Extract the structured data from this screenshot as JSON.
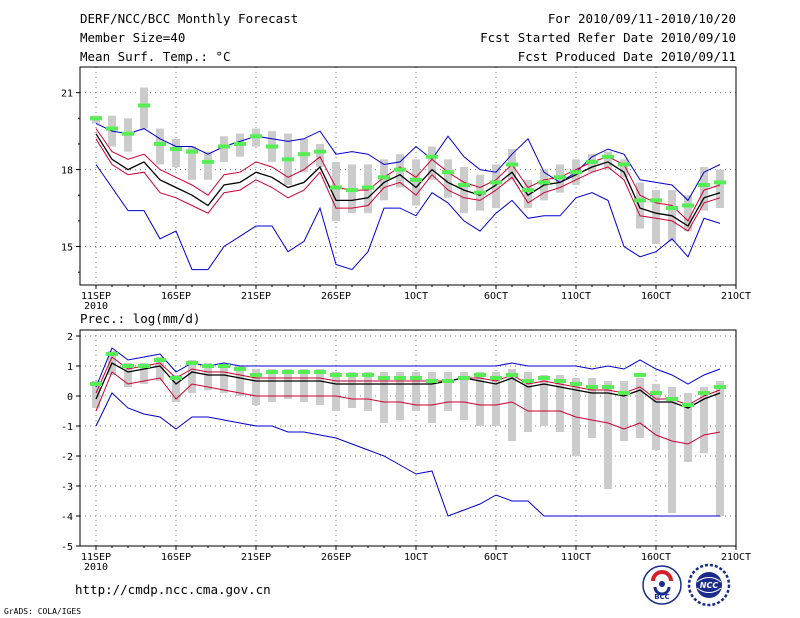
{
  "header": {
    "title": "DERF/NCC/BCC Monthly Forecast",
    "member_size": "Member Size=40",
    "variable": "Mean Surf. Temp.: °C",
    "period": "For 2010/09/11-2010/10/20",
    "started": "Fcst Started Refer Date 2010/09/10",
    "produced": "Fcst Produced Date 2010/09/11"
  },
  "footer": {
    "url": "http://cmdp.ncc.cma.gov.cn",
    "credit": "GrADS: COLA/IGES",
    "logo1_text": "BCC",
    "logo2_text": "NCC"
  },
  "colors": {
    "max": "#0000cc",
    "upper": "#cc0033",
    "mean": "#000000",
    "observed": "#55ee55",
    "spread": "#cccccc",
    "grid": "#777777"
  },
  "chart_data": [
    {
      "type": "line",
      "title": "Mean Surf. Temp.: °C",
      "x": [
        "11SEP",
        "12SEP",
        "13SEP",
        "14SEP",
        "15SEP",
        "16SEP",
        "17SEP",
        "18SEP",
        "19SEP",
        "20SEP",
        "21SEP",
        "22SEP",
        "23SEP",
        "24SEP",
        "25SEP",
        "26SEP",
        "27SEP",
        "28SEP",
        "29SEP",
        "30SEP",
        "1OCT",
        "2OCT",
        "3OCT",
        "4OCT",
        "5OCT",
        "6OCT",
        "7OCT",
        "8OCT",
        "9OCT",
        "10OCT",
        "11OCT",
        "12OCT",
        "13OCT",
        "14OCT",
        "15OCT",
        "16OCT",
        "17OCT",
        "18OCT",
        "19OCT",
        "20OCT"
      ],
      "tick_labels": [
        "11SEP\n2010",
        "16SEP",
        "21SEP",
        "26SEP",
        "1OCT",
        "6OCT",
        "11OCT",
        "16OCT",
        "21OCT"
      ],
      "ylim": [
        13.5,
        22.0
      ],
      "yticks": [
        15,
        18,
        21
      ],
      "series": [
        {
          "name": "max",
          "values": [
            19.8,
            19.5,
            19.4,
            19.6,
            19.2,
            18.9,
            18.9,
            18.6,
            18.9,
            19.1,
            19.3,
            19.2,
            19.1,
            19.2,
            19.5,
            18.6,
            18.7,
            18.6,
            18.2,
            18.3,
            18.9,
            18.4,
            19.3,
            18.5,
            18.0,
            17.9,
            18.6,
            19.2,
            17.9,
            17.5,
            17.9,
            18.5,
            18.8,
            18.6,
            17.6,
            17.5,
            17.4,
            16.8,
            17.9,
            18.2
          ]
        },
        {
          "name": "upper",
          "values": [
            19.6,
            18.7,
            18.4,
            18.6,
            18.0,
            17.7,
            17.4,
            17.0,
            17.8,
            17.9,
            18.3,
            18.1,
            17.7,
            18.0,
            18.5,
            17.3,
            17.2,
            17.2,
            17.7,
            18.1,
            17.7,
            18.4,
            17.9,
            17.5,
            17.3,
            17.6,
            18.2,
            17.3,
            17.6,
            17.7,
            18.0,
            18.3,
            18.5,
            18.2,
            17.0,
            16.7,
            16.6,
            16.0,
            17.2,
            17.4
          ]
        },
        {
          "name": "mean",
          "values": [
            19.4,
            18.4,
            18.0,
            18.3,
            17.6,
            17.3,
            17.0,
            16.6,
            17.4,
            17.5,
            17.9,
            17.7,
            17.3,
            17.5,
            18.1,
            16.8,
            16.8,
            16.9,
            17.5,
            17.8,
            17.3,
            18.0,
            17.5,
            17.2,
            17.0,
            17.4,
            17.9,
            17.0,
            17.4,
            17.5,
            17.8,
            18.1,
            18.3,
            17.9,
            16.5,
            16.3,
            16.2,
            15.8,
            16.9,
            17.1
          ]
        },
        {
          "name": "lower",
          "values": [
            19.2,
            18.2,
            17.8,
            17.9,
            17.1,
            16.9,
            16.6,
            16.3,
            17.1,
            17.2,
            17.6,
            17.3,
            16.9,
            17.2,
            17.9,
            16.5,
            16.5,
            16.6,
            17.3,
            17.5,
            17.0,
            17.8,
            17.2,
            16.9,
            16.8,
            17.2,
            17.7,
            16.7,
            17.1,
            17.3,
            17.6,
            17.9,
            18.1,
            17.6,
            16.2,
            16.1,
            16.0,
            15.6,
            16.7,
            16.9
          ]
        },
        {
          "name": "min",
          "values": [
            18.2,
            17.3,
            16.4,
            16.4,
            15.3,
            15.6,
            14.1,
            14.1,
            15.0,
            15.4,
            15.8,
            15.8,
            14.8,
            15.2,
            16.5,
            14.3,
            14.1,
            14.8,
            16.5,
            16.5,
            16.2,
            17.1,
            16.7,
            16.0,
            15.6,
            16.3,
            16.8,
            16.1,
            16.2,
            16.2,
            16.9,
            17.1,
            16.8,
            15.0,
            14.6,
            14.8,
            15.3,
            14.6,
            16.1,
            15.9
          ]
        },
        {
          "name": "observed",
          "values": [
            20.0,
            19.6,
            19.4,
            20.5,
            19.0,
            18.8,
            18.7,
            18.3,
            18.9,
            19.0,
            19.3,
            18.9,
            18.4,
            18.6,
            18.7,
            17.3,
            17.2,
            17.3,
            17.7,
            18.0,
            17.6,
            18.5,
            17.9,
            17.4,
            17.1,
            17.5,
            18.2,
            17.2,
            17.5,
            17.7,
            17.9,
            18.3,
            18.5,
            18.2,
            16.8,
            16.8,
            16.5,
            16.6,
            17.4,
            17.5
          ]
        },
        {
          "name": "spread_top",
          "values": [
            20.1,
            20.1,
            20.0,
            21.2,
            19.6,
            19.2,
            18.9,
            18.7,
            19.3,
            19.4,
            19.6,
            19.5,
            19.4,
            19.2,
            19.0,
            18.3,
            18.2,
            18.2,
            18.4,
            18.6,
            18.4,
            18.9,
            18.4,
            18.1,
            17.8,
            18.2,
            18.8,
            17.6,
            18.0,
            18.2,
            18.4,
            18.6,
            18.7,
            18.4,
            17.5,
            17.2,
            17.2,
            17.0,
            18.1,
            18.0
          ]
        },
        {
          "name": "spread_bottom",
          "values": [
            19.8,
            18.9,
            18.7,
            19.6,
            18.2,
            18.1,
            17.6,
            17.6,
            18.3,
            18.5,
            18.9,
            18.3,
            17.4,
            17.9,
            18.1,
            16.0,
            16.3,
            16.3,
            16.8,
            17.3,
            16.6,
            17.6,
            16.9,
            16.3,
            16.4,
            16.5,
            17.6,
            16.5,
            16.8,
            17.1,
            17.4,
            17.9,
            18.0,
            17.7,
            15.7,
            15.1,
            15.2,
            15.6,
            16.4,
            16.5
          ]
        }
      ]
    },
    {
      "type": "line",
      "title": "Prec.: log(mm/d)",
      "x": [
        "11SEP",
        "12SEP",
        "13SEP",
        "14SEP",
        "15SEP",
        "16SEP",
        "17SEP",
        "18SEP",
        "19SEP",
        "20SEP",
        "21SEP",
        "22SEP",
        "23SEP",
        "24SEP",
        "25SEP",
        "26SEP",
        "27SEP",
        "28SEP",
        "29SEP",
        "30SEP",
        "1OCT",
        "2OCT",
        "3OCT",
        "4OCT",
        "5OCT",
        "6OCT",
        "7OCT",
        "8OCT",
        "9OCT",
        "10OCT",
        "11OCT",
        "12OCT",
        "13OCT",
        "14OCT",
        "15OCT",
        "16OCT",
        "17OCT",
        "18OCT",
        "19OCT",
        "20OCT"
      ],
      "tick_labels": [
        "11SEP\n2010",
        "16SEP",
        "21SEP",
        "26SEP",
        "1OCT",
        "6OCT",
        "11OCT",
        "16OCT",
        "21OCT"
      ],
      "ylim": [
        -5,
        2.2
      ],
      "yticks": [
        -5,
        -4,
        -3,
        -2,
        -1,
        0,
        1,
        2
      ],
      "series": [
        {
          "name": "max",
          "values": [
            0.3,
            1.6,
            1.2,
            1.3,
            1.4,
            0.8,
            1.1,
            1.0,
            1.1,
            1.0,
            1.0,
            1.0,
            1.0,
            1.0,
            1.0,
            1.0,
            1.0,
            1.0,
            1.0,
            1.0,
            1.0,
            1.0,
            1.0,
            1.0,
            1.0,
            1.0,
            1.1,
            1.0,
            1.0,
            1.0,
            1.0,
            0.9,
            1.0,
            0.9,
            1.2,
            0.9,
            0.7,
            0.4,
            0.7,
            0.9
          ]
        },
        {
          "name": "upper",
          "values": [
            0.1,
            1.3,
            0.9,
            1.0,
            1.1,
            0.6,
            0.9,
            0.8,
            0.8,
            0.7,
            0.6,
            0.6,
            0.6,
            0.6,
            0.6,
            0.5,
            0.5,
            0.5,
            0.5,
            0.5,
            0.5,
            0.5,
            0.5,
            0.6,
            0.6,
            0.5,
            0.7,
            0.4,
            0.5,
            0.4,
            0.3,
            0.2,
            0.2,
            0.1,
            0.3,
            -0.1,
            -0.1,
            -0.3,
            0.0,
            0.2
          ]
        },
        {
          "name": "mean",
          "values": [
            -0.1,
            1.1,
            0.8,
            0.9,
            1.0,
            0.4,
            0.8,
            0.7,
            0.7,
            0.6,
            0.5,
            0.5,
            0.5,
            0.5,
            0.5,
            0.4,
            0.4,
            0.4,
            0.4,
            0.4,
            0.4,
            0.4,
            0.5,
            0.6,
            0.5,
            0.4,
            0.6,
            0.3,
            0.4,
            0.3,
            0.2,
            0.1,
            0.1,
            0.0,
            0.2,
            -0.2,
            -0.2,
            -0.4,
            -0.1,
            0.1
          ]
        },
        {
          "name": "lower",
          "values": [
            -0.5,
            0.8,
            0.4,
            0.5,
            0.6,
            -0.1,
            0.4,
            0.3,
            0.2,
            0.1,
            0.0,
            0.0,
            0.0,
            0.0,
            0.0,
            0.0,
            -0.1,
            -0.1,
            -0.2,
            -0.2,
            -0.3,
            -0.3,
            -0.2,
            -0.2,
            -0.3,
            -0.3,
            -0.2,
            -0.5,
            -0.5,
            -0.5,
            -0.7,
            -0.8,
            -0.9,
            -1.1,
            -0.9,
            -1.3,
            -1.5,
            -1.6,
            -1.3,
            -1.2
          ]
        },
        {
          "name": "min",
          "values": [
            -1.0,
            0.1,
            -0.4,
            -0.6,
            -0.7,
            -1.1,
            -0.7,
            -0.7,
            -0.8,
            -0.9,
            -1.0,
            -1.0,
            -1.2,
            -1.2,
            -1.3,
            -1.4,
            -1.6,
            -1.8,
            -2.0,
            -2.3,
            -2.6,
            -2.5,
            -4.0,
            -3.8,
            -3.6,
            -3.3,
            -3.5,
            -3.5,
            -4.0,
            -4.0,
            -4.0,
            -4.0,
            -4.0,
            -4.0,
            -4.0,
            -4.0,
            -4.0,
            -4.0,
            -4.0,
            -4.0
          ]
        },
        {
          "name": "observed",
          "values": [
            0.4,
            1.4,
            1.0,
            1.0,
            1.2,
            0.6,
            1.1,
            1.0,
            1.0,
            0.9,
            0.7,
            0.8,
            0.8,
            0.8,
            0.8,
            0.7,
            0.7,
            0.7,
            0.6,
            0.6,
            0.6,
            0.5,
            0.5,
            0.6,
            0.7,
            0.6,
            0.7,
            0.5,
            0.6,
            0.5,
            0.4,
            0.3,
            0.3,
            0.1,
            0.7,
            0.1,
            -0.1,
            -0.3,
            0.1,
            0.3
          ]
        },
        {
          "name": "spread_top",
          "values": [
            0.5,
            1.5,
            1.1,
            1.1,
            1.3,
            0.7,
            1.2,
            1.1,
            1.0,
            1.0,
            0.9,
            0.9,
            0.9,
            0.9,
            0.9,
            0.8,
            0.8,
            0.8,
            0.8,
            0.8,
            0.8,
            0.8,
            0.8,
            0.8,
            0.8,
            0.8,
            0.9,
            0.8,
            0.7,
            0.7,
            0.6,
            0.6,
            0.5,
            0.5,
            0.6,
            0.4,
            0.3,
            0.1,
            0.3,
            0.5
          ]
        },
        {
          "name": "spread_bottom",
          "values": [
            -0.4,
            0.7,
            0.3,
            0.4,
            0.5,
            -0.2,
            0.1,
            0.2,
            0.1,
            0.0,
            -0.3,
            -0.2,
            -0.1,
            -0.2,
            -0.3,
            -0.5,
            -0.4,
            -0.5,
            -0.9,
            -0.8,
            -0.5,
            -0.9,
            -0.5,
            -0.8,
            -1.0,
            -1.0,
            -1.5,
            -1.2,
            -1.0,
            -1.2,
            -2.0,
            -1.4,
            -3.1,
            -1.5,
            -1.4,
            -1.8,
            -3.9,
            -2.2,
            -1.9,
            -4.0
          ]
        }
      ]
    }
  ]
}
